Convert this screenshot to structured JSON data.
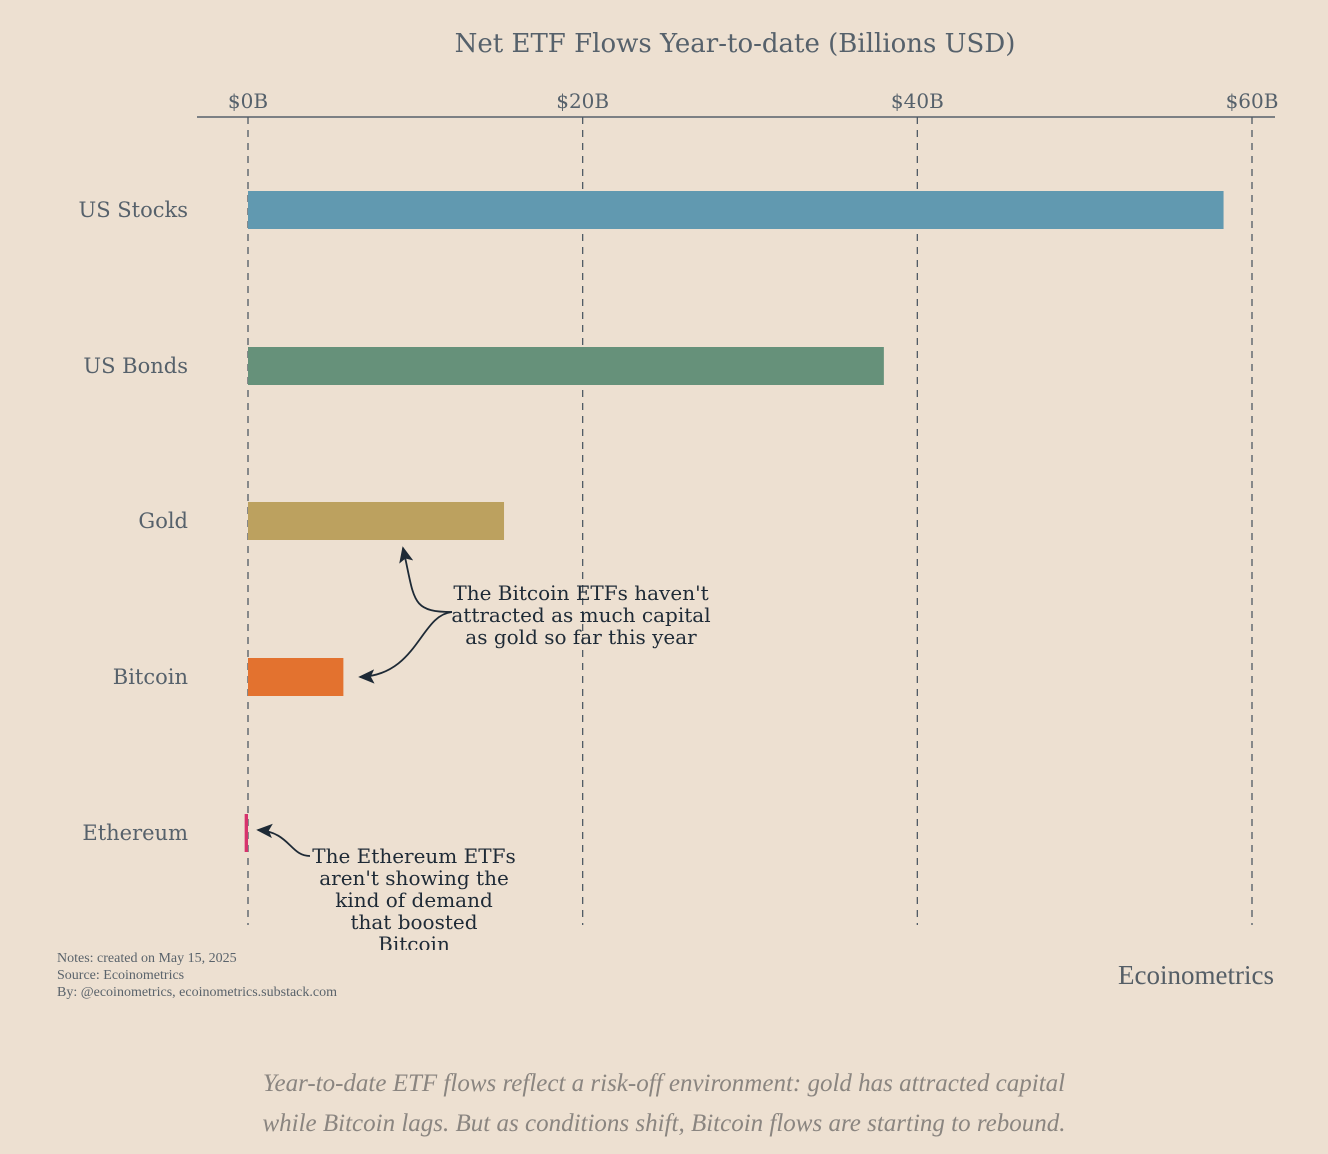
{
  "chart_data": {
    "type": "bar",
    "orientation": "horizontal",
    "title": "Net ETF Flows Year-to-date (Billions USD)",
    "categories": [
      "US Stocks",
      "US Bonds",
      "Gold",
      "Bitcoin",
      "Ethereum"
    ],
    "values": [
      58.3,
      38.0,
      15.3,
      5.7,
      -0.2
    ],
    "colors": [
      "#6199b0",
      "#66917a",
      "#bca15f",
      "#e3722f",
      "#d6336c"
    ],
    "xlim": [
      -3,
      61.5
    ],
    "xticks": [
      0,
      20,
      40,
      60
    ],
    "xtick_labels": [
      "$0B",
      "$20B",
      "$40B",
      "$60B"
    ],
    "x_axis_position": "top",
    "grid": "vertical dashed",
    "annotations": [
      {
        "lines": [
          "The Bitcoin ETFs haven't",
          "attracted as much capital",
          "as gold so far this year"
        ],
        "targets": [
          "Gold",
          "Bitcoin"
        ]
      },
      {
        "lines": [
          "The Ethereum ETFs",
          "aren't showing the",
          "kind of demand",
          "that boosted",
          "Bitcoin"
        ],
        "targets": [
          "Ethereum"
        ]
      }
    ]
  },
  "notes": [
    "Notes: created on May 15, 2025",
    "Source: Ecoinometrics",
    "By: @ecoinometrics, ecoinometrics.substack.com"
  ],
  "brand": "Ecoinometrics",
  "caption": [
    "Year-to-date ETF flows reflect a risk-off environment: gold has attracted capital",
    "while Bitcoin lags. But as conditions shift, Bitcoin flows are starting to rebound."
  ]
}
